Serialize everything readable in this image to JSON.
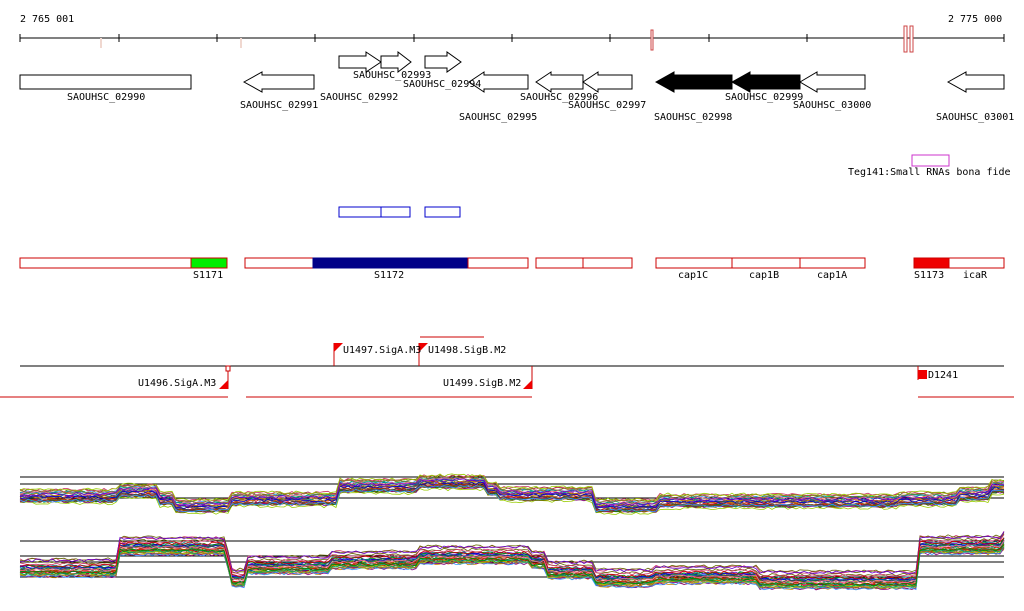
{
  "ruler": {
    "start_label": "2 765 001",
    "end_label": "2 775 000"
  },
  "genes": [
    {
      "label": "SAOUHSC_02990",
      "strand": "+",
      "filled": false
    },
    {
      "label": "SAOUHSC_02991",
      "strand": "-",
      "filled": false
    },
    {
      "label": "SAOUHSC_02992",
      "strand": "+",
      "filled": false
    },
    {
      "label": "SAOUHSC_02993",
      "strand": "+",
      "filled": false
    },
    {
      "label": "SAOUHSC_02994",
      "strand": "+",
      "filled": false
    },
    {
      "label": "SAOUHSC_02995",
      "strand": "-",
      "filled": false
    },
    {
      "label": "SAOUHSC_02996",
      "strand": "-",
      "filled": false
    },
    {
      "label": "SAOUHSC_02997",
      "strand": "-",
      "filled": false
    },
    {
      "label": "SAOUHSC_02998",
      "strand": "-",
      "filled": true
    },
    {
      "label": "SAOUHSC_02999",
      "strand": "-",
      "filled": true
    },
    {
      "label": "SAOUHSC_03000",
      "strand": "-",
      "filled": false
    },
    {
      "label": "SAOUHSC_03001",
      "strand": "-",
      "filled": false
    }
  ],
  "small_rna": {
    "label": "Teg141:Small RNAs bona fide",
    "color": "#cc33cc"
  },
  "segments": [
    {
      "label": "S1171",
      "color": "#00ee00"
    },
    {
      "label": "S1172",
      "color": "#000088"
    },
    {
      "label": "cap1C"
    },
    {
      "label": "cap1B"
    },
    {
      "label": "cap1A"
    },
    {
      "label": "S1173",
      "color": "#ee0000"
    },
    {
      "label": "icaR"
    }
  ],
  "promoters": [
    {
      "label": "U1497.SigA.M3",
      "strand": "+"
    },
    {
      "label": "U1498.SigB.M2",
      "strand": "+"
    },
    {
      "label": "U1496.SigA.M3",
      "strand": "-"
    },
    {
      "label": "U1499.SigB.M2",
      "strand": "-"
    },
    {
      "label": "D1241",
      "strand": "-"
    }
  ],
  "colors": {
    "feature_outline": "#cc0000",
    "blue_box": "#0000cc",
    "ruler": "#000000"
  }
}
